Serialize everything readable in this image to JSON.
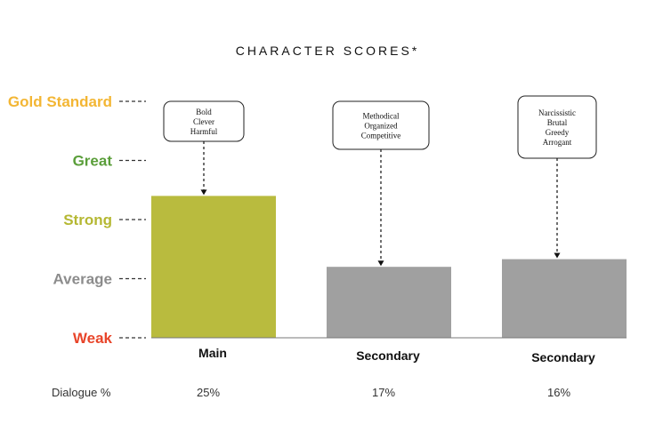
{
  "chart_data": {
    "type": "bar",
    "title": "CHARACTER SCORES*",
    "y_levels": [
      {
        "label": "Weak",
        "value": 0,
        "color": "#e8452a"
      },
      {
        "label": "Average",
        "value": 1,
        "color": "#8c8c8c"
      },
      {
        "label": "Strong",
        "value": 2,
        "color": "#b5b833"
      },
      {
        "label": "Great",
        "value": 3,
        "color": "#5a9e3a"
      },
      {
        "label": "Gold Standard",
        "value": 4,
        "color": "#f3b634"
      }
    ],
    "ylim": [
      0,
      4
    ],
    "categories": [
      "Main",
      "Secondary",
      "Secondary"
    ],
    "values": [
      2.4,
      1.2,
      1.33
    ],
    "bar_colors": [
      "#b9bb3e",
      "#a0a0a0",
      "#a0a0a0"
    ],
    "traits": [
      [
        "Bold",
        "Clever",
        "Harmful"
      ],
      [
        "Methodical",
        "Organized",
        "Competitive"
      ],
      [
        "Narcissistic",
        "Brutal",
        "Greedy",
        "Arrogant"
      ]
    ],
    "dialogue_label": "Dialogue %",
    "dialogue_pct": [
      "25%",
      "17%",
      "16%"
    ]
  }
}
